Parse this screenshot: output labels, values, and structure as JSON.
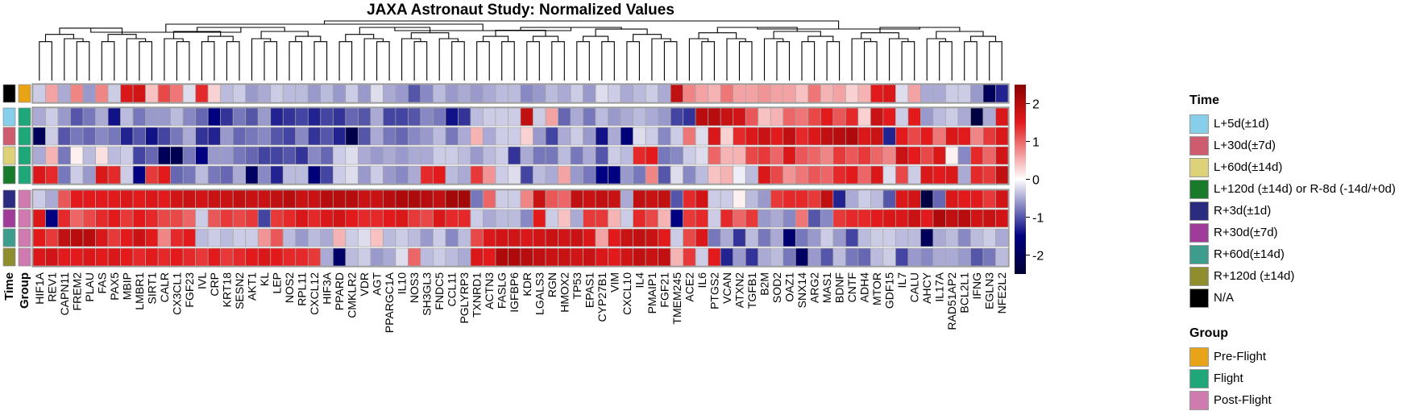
{
  "chart_data": {
    "type": "heatmap",
    "title": "JAXA Astronaut Study: Normalized Values",
    "genes": [
      "HIF1A",
      "REV1",
      "CAPN11",
      "FREM2",
      "PLAU",
      "FAS",
      "PAX5",
      "MBIP",
      "LMBR1",
      "SIRT1",
      "CALR",
      "CX3CL1",
      "FGF23",
      "IVL",
      "CRP",
      "KRT18",
      "SESN2",
      "AKT1",
      "KL",
      "LEP",
      "NOS2",
      "RPL11",
      "CXCL12",
      "HIF3A",
      "PPARD",
      "CMKLR2",
      "VDR",
      "AGT",
      "PPARGC1A",
      "IL10",
      "NOS3",
      "SH3GL3",
      "FNDC5",
      "CCL11",
      "PGLYRP3",
      "TXNRD1",
      "ACTN3",
      "FASLG",
      "IGFBP6",
      "KDR",
      "LGALS3",
      "RGN",
      "HMOX2",
      "TP53",
      "EPAS1",
      "CYP27B1",
      "VIM",
      "CXCL10",
      "IL4",
      "PMAIP1",
      "FGF21",
      "TMEM245",
      "ACE2",
      "IL6",
      "PTGS2",
      "VCAN",
      "ATXN2",
      "TGFB1",
      "B2M",
      "SOD2",
      "OAZ1",
      "SNX14",
      "ARG2",
      "MAS1",
      "BDNF",
      "CNTF",
      "ADH4",
      "MTOR",
      "GDF15",
      "IL7",
      "CALU",
      "AHCY",
      "IL17A",
      "RAD51AP2",
      "BCL2L1",
      "IFNG",
      "EGLN3",
      "NFE2L2"
    ],
    "row_time": [
      "N/A",
      "L+5d(±1d)",
      "L+30d(±7d)",
      "L+60d(±14d)",
      "L+120d (±14d) or R-8d (-14d/+0d)",
      "R+3d(±1d)",
      "R+30d(±7d)",
      "R+60d(±14d)",
      "R+120d (±14d)"
    ],
    "row_group": [
      "Pre-Flight",
      "Flight",
      "Flight",
      "Flight",
      "Flight",
      "Post-Flight",
      "Post-Flight",
      "Post-Flight",
      "Post-Flight"
    ],
    "values": [
      [
        -0.3,
        0.6,
        -0.5,
        0.8,
        -0.6,
        0.8,
        -0.3,
        1.6,
        1.7,
        0.4,
        1.2,
        0.9,
        -0.2,
        1.4,
        0.3,
        -0.4,
        -0.3,
        -0.6,
        -0.5,
        -0.3,
        -0.4,
        -0.4,
        -0.6,
        -0.4,
        -0.6,
        -0.3,
        -0.6,
        -0.2,
        -0.5,
        -0.6,
        -1.0,
        -0.7,
        -0.4,
        -0.6,
        -0.5,
        -0.6,
        -0.5,
        -0.4,
        -0.4,
        -0.7,
        -0.6,
        -0.4,
        -0.5,
        -0.3,
        -0.6,
        -0.2,
        -0.3,
        -0.5,
        -0.4,
        -0.3,
        -0.5,
        1.9,
        0.8,
        0.6,
        0.5,
        0.9,
        0.6,
        0.6,
        0.7,
        0.6,
        0.6,
        0.4,
        0.9,
        0.5,
        0.6,
        0.3,
        0.5,
        1.5,
        1.6,
        -0.2,
        0.6,
        -0.5,
        -0.5,
        -0.3,
        -0.3,
        -0.6,
        -2.0,
        -1.3
      ],
      [
        -0.5,
        -0.3,
        -0.6,
        -1.0,
        -0.8,
        -0.5,
        -1.4,
        -0.4,
        -0.8,
        -0.6,
        -0.6,
        -0.4,
        -0.7,
        -0.9,
        -1.5,
        -1.2,
        -0.8,
        -1.0,
        -0.6,
        -1.3,
        -1.2,
        -1.1,
        -1.3,
        -1.1,
        -1.2,
        -0.9,
        -1.0,
        -0.5,
        -1.1,
        -1.1,
        -1.0,
        -0.7,
        -0.8,
        -1.4,
        -1.2,
        -0.4,
        -0.3,
        -0.3,
        -0.3,
        1.9,
        -0.3,
        0.6,
        -0.9,
        -0.5,
        -0.8,
        -0.4,
        -0.6,
        -0.5,
        -0.4,
        -0.5,
        -0.6,
        -1.1,
        -1.2,
        2.0,
        2.0,
        1.8,
        1.7,
        1.1,
        0.4,
        0.5,
        1.0,
        0.9,
        1.2,
        1.5,
        1.1,
        1.4,
        0.3,
        1.8,
        1.5,
        -0.3,
        1.5,
        -0.6,
        -0.4,
        -0.3,
        -0.5,
        -2.3,
        -0.5,
        1.6
      ],
      [
        -2.0,
        -0.3,
        -1.0,
        -0.8,
        -0.9,
        -0.7,
        -0.8,
        -1.3,
        -1.0,
        -1.4,
        -1.1,
        -0.8,
        -0.5,
        -1.2,
        -1.3,
        -0.6,
        -0.9,
        -0.8,
        -0.7,
        -1.0,
        -1.1,
        -0.7,
        -1.2,
        -1.0,
        -1.3,
        -2.2,
        -1.0,
        -0.5,
        -0.8,
        -0.9,
        -0.7,
        -0.6,
        -0.4,
        -0.8,
        -0.5,
        0.5,
        -0.5,
        -0.3,
        -0.3,
        0.3,
        -0.6,
        -1.1,
        -0.5,
        -0.3,
        -0.6,
        -1.4,
        -0.5,
        -1.6,
        -0.2,
        -0.3,
        -0.7,
        -0.3,
        0.9,
        -0.2,
        1.6,
        0.3,
        1.4,
        1.6,
        1.8,
        1.5,
        1.9,
        1.4,
        1.6,
        1.9,
        2.0,
        2.1,
        1.6,
        1.8,
        -1.3,
        1.5,
        1.2,
        1.5,
        0.9,
        1.6,
        1.5,
        0.8,
        1.3,
        1.6
      ],
      [
        -0.5,
        0.5,
        -0.8,
        0.1,
        -0.4,
        0.2,
        -0.4,
        -0.3,
        -1.1,
        -0.9,
        -2.0,
        -2.1,
        -0.8,
        -1.5,
        -0.6,
        -0.6,
        -0.8,
        -0.9,
        -1.1,
        -1.1,
        -1.0,
        -1.2,
        -0.7,
        -0.9,
        -0.3,
        -0.2,
        -0.5,
        -0.6,
        -0.5,
        -0.6,
        -0.5,
        -0.5,
        -0.3,
        -0.3,
        -0.4,
        -0.6,
        -0.4,
        -0.3,
        -1.2,
        -0.5,
        -0.8,
        -0.8,
        -0.4,
        -0.8,
        -0.5,
        -1.0,
        -0.3,
        -0.4,
        1.4,
        1.5,
        -0.8,
        -0.7,
        -0.3,
        -0.2,
        1.0,
        0.5,
        0.5,
        1.2,
        1.3,
        1.0,
        1.6,
        1.1,
        1.0,
        0.8,
        1.3,
        1.1,
        1.3,
        1.0,
        0.8,
        1.8,
        1.5,
        1.2,
        1.6,
        0.1,
        -0.7,
        1.4,
        1.0,
        1.7
      ],
      [
        1.6,
        1.4,
        -0.8,
        -0.3,
        -0.6,
        1.6,
        1.4,
        -0.3,
        -1.5,
        1.3,
        1.5,
        -0.9,
        -0.8,
        -0.4,
        -0.8,
        -0.9,
        -0.5,
        -1.9,
        -0.7,
        -1.3,
        -0.4,
        -0.4,
        -1.6,
        -1.1,
        -0.3,
        -0.2,
        -0.6,
        -0.3,
        -0.6,
        -0.7,
        -0.5,
        1.4,
        1.5,
        -0.4,
        -0.5,
        1.3,
        0.7,
        -0.3,
        -0.2,
        -1.1,
        -0.4,
        -0.5,
        0.6,
        -0.6,
        -0.8,
        -1.5,
        -1.5,
        -0.6,
        -0.8,
        0.8,
        -1.0,
        -0.2,
        -0.7,
        -0.4,
        0.4,
        0.5,
        -0.1,
        -0.4,
        1.6,
        1.2,
        0.7,
        0.9,
        1.1,
        1.0,
        1.4,
        1.5,
        1.0,
        1.6,
        -0.2,
        1.2,
        -0.3,
        1.6,
        1.5,
        1.6,
        -0.5,
        1.4,
        1.3,
        1.9
      ],
      [
        -0.3,
        -0.5,
        1.1,
        1.5,
        1.5,
        1.5,
        1.5,
        1.6,
        1.5,
        1.6,
        1.5,
        1.7,
        1.8,
        1.7,
        1.8,
        1.8,
        1.9,
        1.8,
        1.8,
        1.9,
        2.0,
        1.8,
        1.8,
        2.0,
        2.0,
        2.0,
        1.8,
        1.8,
        2.0,
        2.1,
        2.1,
        2.0,
        1.9,
        2.2,
        2.2,
        -0.8,
        1.0,
        -0.3,
        -0.3,
        0.8,
        1.8,
        1.1,
        1.0,
        1.9,
        1.8,
        1.9,
        1.8,
        -0.5,
        1.9,
        1.8,
        1.9,
        -1.0,
        1.4,
        1.7,
        -0.3,
        -0.3,
        0.1,
        -0.4,
        -0.6,
        1.3,
        1.4,
        1.4,
        1.3,
        1.9,
        -1.3,
        -0.5,
        -0.3,
        -0.4,
        -1.0,
        1.6,
        1.7,
        -2.3,
        -0.9,
        1.6,
        1.5,
        1.5,
        1.3,
        1.7
      ],
      [
        1.6,
        -1.5,
        1.4,
        1.0,
        1.2,
        1.4,
        1.5,
        1.3,
        1.5,
        1.4,
        1.2,
        1.2,
        1.0,
        -0.3,
        1.1,
        1.3,
        1.2,
        1.3,
        -1.1,
        1.3,
        1.4,
        1.6,
        1.4,
        1.6,
        1.7,
        1.5,
        1.4,
        1.4,
        1.5,
        1.6,
        1.3,
        1.2,
        1.6,
        1.4,
        1.4,
        -0.3,
        -0.5,
        -0.4,
        -0.4,
        -0.7,
        1.5,
        -0.3,
        0.4,
        -0.5,
        1.3,
        1.3,
        0.5,
        -0.3,
        1.4,
        1.2,
        0.5,
        -1.5,
        1.3,
        1.4,
        -0.3,
        1.4,
        1.0,
        1.3,
        -0.6,
        -0.5,
        -0.7,
        0.9,
        -1.0,
        -0.7,
        1.3,
        1.4,
        1.4,
        1.5,
        1.6,
        1.6,
        1.8,
        1.5,
        2.1,
        1.9,
        2.0,
        1.7,
        1.8,
        1.7
      ],
      [
        1.5,
        1.3,
        1.9,
        2.0,
        2.0,
        1.6,
        1.3,
        1.5,
        1.8,
        1.5,
        0.8,
        1.4,
        1.5,
        -0.4,
        -0.3,
        -0.4,
        -0.3,
        -0.3,
        0.7,
        1.1,
        -0.4,
        -0.6,
        -0.4,
        -0.5,
        0.5,
        -0.3,
        -0.2,
        0.4,
        -0.4,
        -0.3,
        -0.4,
        -0.6,
        -0.3,
        -0.7,
        -0.4,
        1.2,
        1.6,
        1.7,
        1.7,
        1.6,
        1.7,
        1.8,
        1.7,
        1.8,
        1.6,
        0.6,
        1.5,
        1.8,
        1.9,
        1.8,
        1.5,
        -0.3,
        1.2,
        1.6,
        -0.8,
        -0.5,
        -1.2,
        -0.4,
        -0.8,
        -0.5,
        -1.7,
        -0.8,
        -0.6,
        -0.3,
        -0.6,
        -1.1,
        -0.4,
        -0.3,
        -0.3,
        -0.4,
        -0.4,
        -2.0,
        -0.5,
        -0.4,
        -0.7,
        -0.4,
        -0.3,
        -0.5
      ],
      [
        1.6,
        1.7,
        1.5,
        1.5,
        1.6,
        1.5,
        1.6,
        1.5,
        1.4,
        1.5,
        1.4,
        1.5,
        1.4,
        1.3,
        1.5,
        1.3,
        1.4,
        1.5,
        1.6,
        1.5,
        1.4,
        1.4,
        1.3,
        -0.5,
        -1.8,
        -0.4,
        -0.3,
        -0.6,
        -0.5,
        -0.2,
        1.0,
        -0.4,
        -0.3,
        -0.4,
        -0.5,
        1.6,
        1.5,
        2.1,
        2.1,
        2.0,
        1.9,
        1.8,
        1.8,
        1.7,
        1.8,
        1.6,
        1.5,
        1.7,
        1.9,
        1.8,
        1.9,
        0.5,
        1.3,
        -0.3,
        1.5,
        -1.3,
        -0.6,
        -1.2,
        -0.5,
        -0.4,
        -0.8,
        -1.9,
        -0.6,
        -1.0,
        -0.4,
        -0.8,
        -0.9,
        -0.4,
        -0.3,
        -1.1,
        -0.6,
        -0.7,
        -0.5,
        -0.5,
        -0.6,
        -1.0,
        -0.8,
        -0.4
      ]
    ],
    "colorbar": {
      "ticks": [
        2,
        1,
        0,
        -1,
        -2
      ],
      "range": [
        -2.5,
        2.5
      ],
      "colors": [
        "#000033",
        "#000080",
        "#ffffff",
        "#e31a1c",
        "#8b0000"
      ]
    },
    "time_colors": {
      "N/A": "#000000",
      "L+5d(±1d)": "#87ceeb",
      "L+30d(±7d)": "#cd5c6e",
      "L+60d(±14d)": "#ddd27a",
      "L+120d (±14d) or R-8d (-14d/+0d)": "#1a7a2c",
      "R+3d(±1d)": "#2b2b7f",
      "R+30d(±7d)": "#9f3c99",
      "R+60d(±14d)": "#3d9d8d",
      "R+120d (±14d)": "#8e8e2e"
    },
    "group_colors": {
      "Pre-Flight": "#e8a317",
      "Flight": "#1fa77a",
      "Post-Flight": "#d07bb0"
    },
    "annotation_labels": {
      "time": "Time",
      "group": "Group"
    }
  },
  "legend": {
    "time_title": "Time",
    "time_items": [
      {
        "label": "L+5d(±1d)",
        "color": "#87ceeb"
      },
      {
        "label": "L+30d(±7d)",
        "color": "#cd5c6e"
      },
      {
        "label": "L+60d(±14d)",
        "color": "#ddd27a"
      },
      {
        "label": "L+120d (±14d) or R-8d (-14d/+0d)",
        "color": "#1a7a2c"
      },
      {
        "label": "R+3d(±1d)",
        "color": "#2b2b7f"
      },
      {
        "label": "R+30d(±7d)",
        "color": "#9f3c99"
      },
      {
        "label": "R+60d(±14d)",
        "color": "#3d9d8d"
      },
      {
        "label": "R+120d (±14d)",
        "color": "#8e8e2e"
      },
      {
        "label": "N/A",
        "color": "#000000"
      }
    ],
    "group_title": "Group",
    "group_items": [
      {
        "label": "Pre-Flight",
        "color": "#e8a317"
      },
      {
        "label": "Flight",
        "color": "#1fa77a"
      },
      {
        "label": "Post-Flight",
        "color": "#d07bb0"
      }
    ]
  }
}
